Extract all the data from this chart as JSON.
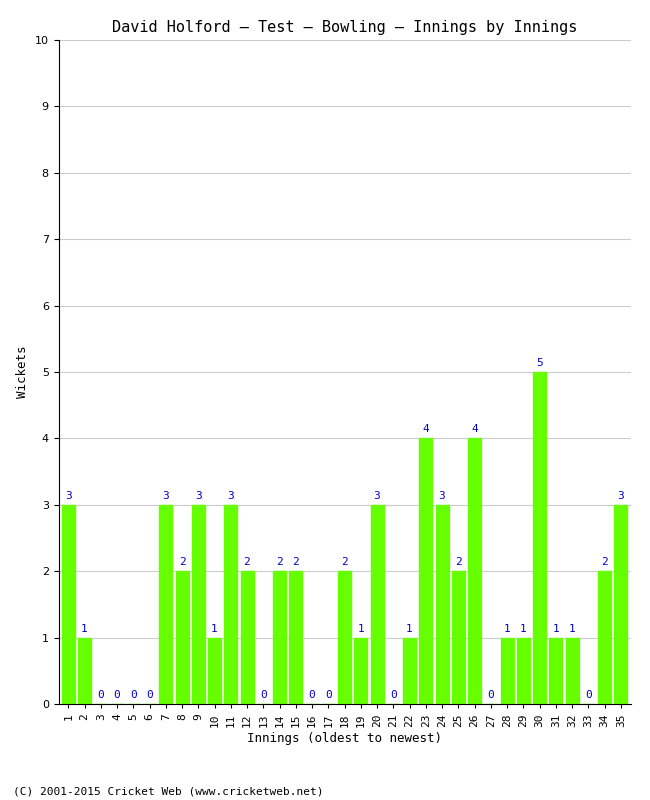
{
  "title": "David Holford – Test – Bowling – Innings by Innings",
  "xlabel": "Innings (oldest to newest)",
  "ylabel": "Wickets",
  "ylim": [
    0,
    10
  ],
  "yticks": [
    0,
    1,
    2,
    3,
    4,
    5,
    6,
    7,
    8,
    9,
    10
  ],
  "bar_color": "#66ff00",
  "label_color": "#0000cc",
  "innings": [
    1,
    2,
    3,
    4,
    5,
    6,
    7,
    8,
    9,
    10,
    11,
    12,
    13,
    14,
    15,
    16,
    17,
    18,
    19,
    20,
    21,
    22,
    23,
    24,
    25,
    26,
    27,
    28,
    29,
    30,
    31,
    32,
    33,
    34,
    35
  ],
  "wickets": [
    3,
    1,
    0,
    0,
    0,
    0,
    3,
    2,
    3,
    1,
    3,
    2,
    0,
    2,
    2,
    0,
    0,
    2,
    1,
    3,
    0,
    1,
    4,
    3,
    2,
    4,
    0,
    1,
    1,
    5,
    1,
    1,
    0,
    2,
    3
  ],
  "copyright": "(C) 2001-2015 Cricket Web (www.cricketweb.net)",
  "background_color": "#ffffff",
  "grid_color": "#cccccc",
  "title_fontsize": 11,
  "label_fontsize": 9,
  "tick_fontsize": 8,
  "annotation_fontsize": 8
}
